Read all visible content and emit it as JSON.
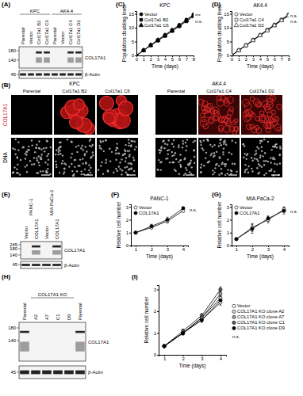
{
  "chart_data": [
    {
      "type": "line",
      "panel_label": "(C)",
      "title": "KPC",
      "xlabel": "Time (days)",
      "ylabel": "Population doubling level",
      "x": [
        0,
        1,
        2,
        3,
        4,
        5,
        6,
        7,
        8
      ],
      "xlim": [
        0,
        8
      ],
      "xticks": [
        0,
        1,
        2,
        3,
        4,
        5,
        6,
        7,
        8
      ],
      "ylim": [
        0,
        16
      ],
      "yticks": [
        0,
        5,
        10,
        15
      ],
      "grid": false,
      "legend": "top-left",
      "series": [
        {
          "name": "Vector",
          "color": "#000000",
          "marker": "circle",
          "values": [
            0,
            1.9,
            3.8,
            5.6,
            7.4,
            9.2,
            11.0,
            12.9,
            14.8
          ]
        },
        {
          "name": "Col17a1 B2",
          "color": "#000000",
          "marker": "square",
          "values": [
            0,
            1.8,
            3.6,
            5.3,
            7.0,
            8.8,
            10.5,
            12.3,
            14.1
          ]
        },
        {
          "name": "Col17a1 C6",
          "color": "#000000",
          "marker": "triangle",
          "values": [
            0,
            1.8,
            3.7,
            5.5,
            7.2,
            9.0,
            10.8,
            12.6,
            14.4
          ]
        }
      ],
      "annotations": [
        "***",
        "n.s."
      ]
    },
    {
      "type": "line",
      "panel_label": "(D)",
      "title": "AK4.4",
      "xlabel": "Time (days)",
      "ylabel": "Population doubling level",
      "x": [
        0,
        1,
        2,
        3,
        4,
        5,
        6,
        7,
        8
      ],
      "xlim": [
        0,
        8
      ],
      "xticks": [
        0,
        1,
        2,
        3,
        4,
        5,
        6,
        7,
        8
      ],
      "ylim": [
        0,
        16
      ],
      "yticks": [
        0,
        5,
        10,
        15
      ],
      "grid": false,
      "legend": "top-left",
      "series": [
        {
          "name": "Vector",
          "color": "#ffffff",
          "marker": "circle",
          "values": [
            0,
            1.9,
            3.7,
            5.6,
            7.4,
            9.3,
            11.1,
            13.0,
            14.8
          ]
        },
        {
          "name": "Col17a1 C4",
          "color": "#ffffff",
          "marker": "square",
          "values": [
            0,
            1.8,
            3.6,
            5.5,
            7.3,
            9.1,
            10.9,
            12.8,
            14.6
          ]
        },
        {
          "name": "Col17a1 D2",
          "color": "#ffffff",
          "marker": "triangle",
          "values": [
            0,
            1.8,
            3.6,
            5.4,
            7.2,
            9.0,
            10.8,
            12.6,
            14.4
          ]
        }
      ],
      "annotations": [
        "n.s.",
        "n.s."
      ]
    },
    {
      "type": "line",
      "panel_label": "(F)",
      "title": "PANC-1",
      "xlabel": "Time (days)",
      "ylabel": "Relative cell number",
      "x": [
        1,
        2,
        3,
        4
      ],
      "xlim": [
        0.7,
        4.3
      ],
      "xticks": [
        1,
        2,
        3,
        4
      ],
      "ylim": [
        0,
        3.2
      ],
      "yticks": [
        0,
        1,
        2,
        3
      ],
      "grid": false,
      "legend": "top-left",
      "series": [
        {
          "name": "Vector",
          "color": "#ffffff",
          "marker": "circle",
          "values": [
            1.0,
            1.4,
            1.9,
            2.7
          ],
          "errors": [
            0.05,
            0.1,
            0.15,
            0.1
          ]
        },
        {
          "name": "COL17A1",
          "color": "#000000",
          "marker": "circle",
          "values": [
            1.0,
            1.5,
            2.0,
            2.9
          ],
          "errors": [
            0.05,
            0.15,
            0.2,
            0.1
          ]
        }
      ],
      "annotations": [
        "n.s."
      ]
    },
    {
      "type": "line",
      "panel_label": "(G)",
      "title": "MIA PaCa-2",
      "xlabel": "Time (days)",
      "ylabel": "Relative cell number",
      "x": [
        1,
        2,
        3,
        4
      ],
      "xlim": [
        0.7,
        4.3
      ],
      "xticks": [
        1,
        2,
        3,
        4
      ],
      "ylim": [
        0,
        3.2
      ],
      "yticks": [
        0,
        1,
        2,
        3
      ],
      "grid": false,
      "legend": "top-left",
      "series": [
        {
          "name": "Vector",
          "color": "#ffffff",
          "marker": "circle",
          "values": [
            0.5,
            1.4,
            2.0,
            2.8
          ],
          "errors": [
            0.05,
            0.3,
            0.25,
            0.2
          ]
        },
        {
          "name": "COL17A1",
          "color": "#000000",
          "marker": "circle",
          "values": [
            0.5,
            1.3,
            2.1,
            2.7
          ],
          "errors": [
            0.05,
            0.35,
            0.2,
            0.25
          ]
        }
      ],
      "annotations": [
        "n.s."
      ]
    },
    {
      "type": "line",
      "panel_label": "(I)",
      "xlabel": "Time (days)",
      "ylabel": "Relative cell number",
      "x": [
        1,
        2,
        3,
        4
      ],
      "xlim": [
        0.7,
        4.3
      ],
      "xticks": [
        1,
        2,
        3,
        4
      ],
      "ylim": [
        0,
        3.2
      ],
      "yticks": [
        0,
        1,
        2,
        3
      ],
      "grid": false,
      "legend": "right",
      "series": [
        {
          "name": "Vector",
          "color": "#ffffff",
          "marker": "circle",
          "values": [
            0.4,
            1.0,
            1.6,
            2.4
          ],
          "errors": [
            0.05,
            0.08,
            0.1,
            0.12
          ]
        },
        {
          "name": "COL17A1 KO clone A2",
          "color": "#d9d9d9",
          "marker": "circle",
          "values": [
            0.4,
            1.0,
            1.7,
            2.6
          ],
          "errors": [
            0.05,
            0.08,
            0.1,
            0.12
          ]
        },
        {
          "name": "COL17A1 KO clone A7",
          "color": "#a6a6a6",
          "marker": "circle",
          "values": [
            0.4,
            1.0,
            1.7,
            2.8
          ],
          "errors": [
            0.05,
            0.08,
            0.1,
            0.12
          ]
        },
        {
          "name": "COL17A1 KO clone C1",
          "color": "#595959",
          "marker": "circle",
          "values": [
            0.4,
            1.1,
            1.8,
            3.0
          ],
          "errors": [
            0.05,
            0.08,
            0.1,
            0.12
          ]
        },
        {
          "name": "COL17A1 KO clone D9",
          "color": "#000000",
          "marker": "circle",
          "values": [
            0.4,
            1.0,
            1.6,
            2.5
          ],
          "errors": [
            0.05,
            0.08,
            0.1,
            0.12
          ]
        }
      ],
      "annotations": [
        "n.s."
      ]
    }
  ],
  "blots": [
    {
      "panel_label": "(A)",
      "groups": [
        {
          "label": "KPC",
          "lanes": [
            "Parental",
            "Vector",
            "Col17a1 B2",
            "Col17a1 C6"
          ]
        },
        {
          "label": "AK4.4",
          "lanes": [
            "Parental",
            "Vector",
            "Col17a1 C4",
            "Col17a1 D2"
          ]
        }
      ],
      "markers": [
        180,
        140,
        45
      ],
      "bands": [
        "COL17A1",
        "β-Actin"
      ]
    },
    {
      "panel_label": "(E)",
      "groups": [
        {
          "label": "PANC-1",
          "lanes": [
            "Vector",
            "COL17A1"
          ]
        },
        {
          "label": "MIA PaCa-2",
          "lanes": [
            "Vector",
            "COL17A1"
          ]
        }
      ],
      "markers": [
        245,
        180,
        140,
        45
      ],
      "bands": [
        "COL17A1",
        "β-Actin"
      ]
    },
    {
      "panel_label": "(H)",
      "groups": [
        {
          "lanes": [
            "Parental"
          ]
        },
        {
          "label": "COL17A1 KO",
          "lanes": [
            "A2",
            "A7",
            "C1",
            "D9"
          ]
        },
        {
          "lanes": [
            "Parental"
          ]
        }
      ],
      "markers": [
        180,
        140,
        45
      ],
      "bands": [
        "COL17A1",
        "β-Actin"
      ]
    }
  ],
  "micrographs": {
    "panel_label": "(B)",
    "groups": [
      {
        "label": "KPC",
        "columns": [
          "Parental",
          "Col17a1 B2",
          "Col17a1 C6"
        ]
      },
      {
        "label": "AK4.4",
        "columns": [
          "Parental",
          "Col17a1 C4",
          "Col17a1 D2"
        ]
      }
    ],
    "rows": [
      "COL17A1",
      "DNA"
    ]
  }
}
